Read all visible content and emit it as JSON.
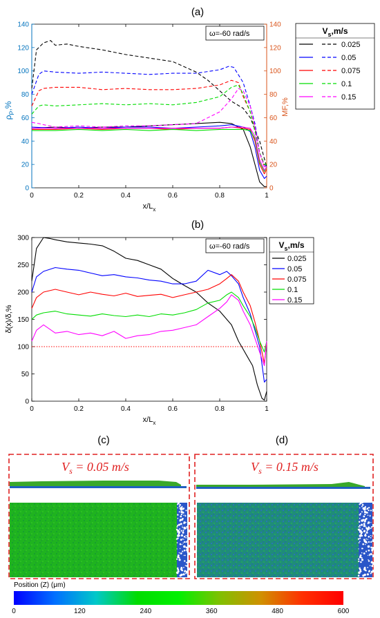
{
  "panels": {
    "a": {
      "label": "(a)"
    },
    "b": {
      "label": "(b)"
    },
    "c": {
      "label": "(c)",
      "formula_lhs": "V",
      "formula_sub": "s",
      "formula_rhs": " = 0.05 m/s"
    },
    "d": {
      "label": "(d)",
      "formula_lhs": "V",
      "formula_sub": "s",
      "formula_rhs": " = 0.15 m/s"
    }
  },
  "colorbar": {
    "title": "Position (Z) (μm)",
    "ticks": [
      "0",
      "120",
      "240",
      "360",
      "480",
      "600"
    ],
    "colors": [
      "#0000ff",
      "#0070ff",
      "#00c8c8",
      "#00dc00",
      "#00f000",
      "#80c000",
      "#d09000",
      "#ff3000",
      "#ff0000"
    ]
  },
  "colors": {
    "left_axis": "#0072bd",
    "right_axis": "#d95319",
    "series": [
      "#000000",
      "#0000ff",
      "#ff0000",
      "#00dd00",
      "#ff00ff"
    ],
    "sample_green": "#16b016",
    "sample_blue": "#1d8a6e",
    "dashed_frame": "#e02020"
  },
  "chart_data": [
    {
      "type": "line",
      "title": "(a)",
      "annotation": "ω=-60 rad/s",
      "xlabel_main": "x/L",
      "xlabel_sub": "x",
      "ylabel_main": "ρ",
      "ylabel_sub": "P",
      "ylabel_tail": ",%",
      "y2label": "MF,%",
      "xlim": [
        0,
        1
      ],
      "ylim": [
        0,
        140
      ],
      "y2lim": [
        0,
        140
      ],
      "xticks": [
        "0",
        "0.2",
        "0.4",
        "0.6",
        "0.8",
        "1"
      ],
      "yticks": [
        "0",
        "20",
        "40",
        "60",
        "80",
        "100",
        "120",
        "140"
      ],
      "y2ticks": [
        "0",
        "20",
        "40",
        "60",
        "80",
        "100",
        "120",
        "140"
      ],
      "legend": {
        "title_main": "V",
        "title_sub": "s",
        "title_tail": ",m/s",
        "labels": [
          "0.025",
          "0.05",
          "0.075",
          "0.1",
          "0.15"
        ],
        "placement": "outside-right"
      },
      "series": [
        {
          "name": "0.025",
          "style": "solid",
          "x": [
            0,
            0.1,
            0.2,
            0.3,
            0.4,
            0.5,
            0.6,
            0.7,
            0.8,
            0.85,
            0.9,
            0.93,
            0.95,
            0.97,
            0.99,
            1.0
          ],
          "y": [
            51,
            52,
            51,
            52,
            52,
            53,
            54,
            55,
            56,
            55,
            50,
            35,
            20,
            5,
            1,
            1
          ]
        },
        {
          "name": "0.05",
          "style": "solid",
          "x": [
            0,
            0.1,
            0.2,
            0.3,
            0.4,
            0.5,
            0.6,
            0.7,
            0.8,
            0.85,
            0.9,
            0.93,
            0.95,
            0.97,
            0.99,
            1.0
          ],
          "y": [
            52,
            51,
            52,
            51,
            52,
            52,
            51,
            52,
            53,
            54,
            52,
            48,
            35,
            15,
            8,
            10
          ]
        },
        {
          "name": "0.075",
          "style": "solid",
          "x": [
            0,
            0.1,
            0.2,
            0.3,
            0.4,
            0.5,
            0.6,
            0.7,
            0.8,
            0.85,
            0.9,
            0.93,
            0.95,
            0.97,
            0.99,
            1.0
          ],
          "y": [
            50,
            50,
            51,
            50,
            51,
            51,
            50,
            51,
            51,
            52,
            51,
            50,
            40,
            20,
            12,
            16
          ]
        },
        {
          "name": "0.1",
          "style": "solid",
          "x": [
            0,
            0.1,
            0.2,
            0.3,
            0.4,
            0.5,
            0.6,
            0.7,
            0.8,
            0.85,
            0.9,
            0.93,
            0.95,
            0.97,
            0.99,
            1.0
          ],
          "y": [
            49,
            49,
            50,
            49,
            50,
            49,
            50,
            49,
            50,
            50,
            50,
            49,
            42,
            22,
            14,
            18
          ]
        },
        {
          "name": "0.15",
          "style": "solid",
          "x": [
            0,
            0.1,
            0.2,
            0.3,
            0.4,
            0.5,
            0.6,
            0.7,
            0.8,
            0.85,
            0.9,
            0.93,
            0.95,
            0.97,
            0.99,
            1.0
          ],
          "y": [
            51,
            51,
            51,
            51,
            51,
            51,
            51,
            51,
            51,
            52,
            52,
            51,
            44,
            24,
            15,
            18
          ]
        },
        {
          "name": "0.025",
          "style": "dashed",
          "x": [
            0,
            0.02,
            0.05,
            0.08,
            0.1,
            0.15,
            0.2,
            0.3,
            0.4,
            0.5,
            0.6,
            0.7,
            0.75,
            0.8,
            0.85,
            0.9,
            0.93,
            0.95,
            0.97,
            0.99,
            1.0
          ],
          "y": [
            85,
            118,
            124,
            126,
            122,
            123,
            121,
            118,
            114,
            111,
            108,
            99,
            92,
            83,
            74,
            68,
            60,
            50,
            40,
            25,
            18
          ]
        },
        {
          "name": "0.05",
          "style": "dashed",
          "x": [
            0,
            0.03,
            0.05,
            0.1,
            0.2,
            0.3,
            0.4,
            0.5,
            0.6,
            0.7,
            0.8,
            0.84,
            0.86,
            0.9,
            0.93,
            0.95,
            0.97,
            0.99,
            1.0
          ],
          "y": [
            80,
            97,
            100,
            99,
            98,
            99,
            98,
            97,
            98,
            98,
            101,
            104,
            103,
            90,
            70,
            55,
            30,
            20,
            18
          ]
        },
        {
          "name": "0.075",
          "style": "dashed",
          "x": [
            0,
            0.03,
            0.05,
            0.1,
            0.2,
            0.3,
            0.4,
            0.5,
            0.6,
            0.7,
            0.8,
            0.85,
            0.88,
            0.9,
            0.93,
            0.95,
            0.97,
            0.99,
            1.0
          ],
          "y": [
            70,
            83,
            85,
            86,
            86,
            84,
            85,
            84,
            84,
            85,
            88,
            92,
            90,
            78,
            65,
            50,
            30,
            18,
            17
          ]
        },
        {
          "name": "0.1",
          "style": "dashed",
          "x": [
            0,
            0.03,
            0.05,
            0.1,
            0.2,
            0.3,
            0.4,
            0.5,
            0.6,
            0.7,
            0.8,
            0.85,
            0.88,
            0.9,
            0.93,
            0.95,
            0.97,
            0.99,
            1.0
          ],
          "y": [
            63,
            70,
            71,
            70,
            71,
            72,
            71,
            72,
            71,
            73,
            78,
            86,
            88,
            80,
            65,
            48,
            30,
            20,
            20
          ]
        },
        {
          "name": "0.15",
          "style": "dashed",
          "x": [
            0,
            0.03,
            0.05,
            0.1,
            0.2,
            0.3,
            0.4,
            0.5,
            0.6,
            0.7,
            0.8,
            0.85,
            0.88,
            0.9,
            0.93,
            0.95,
            0.97,
            0.99,
            1.0
          ],
          "y": [
            56,
            55,
            54,
            52,
            53,
            52,
            53,
            53,
            54,
            55,
            65,
            76,
            85,
            83,
            70,
            52,
            30,
            18,
            18
          ]
        }
      ]
    },
    {
      "type": "line",
      "title": "(b)",
      "annotation": "ω=-60 rad/s",
      "xlabel_main": "x/L",
      "xlabel_sub": "x",
      "ylabel": "δ(x)/δ,%",
      "xlim": [
        0,
        1
      ],
      "ylim": [
        0,
        300
      ],
      "xticks": [
        "0",
        "0.2",
        "0.4",
        "0.6",
        "0.8",
        "1"
      ],
      "yticks": [
        "0",
        "50",
        "100",
        "150",
        "200",
        "250",
        "300"
      ],
      "reference_line": {
        "y": 100,
        "color": "#ff0000",
        "style": "dotted"
      },
      "legend": {
        "title_main": "V",
        "title_sub": "s",
        "title_tail": ",m/s",
        "labels": [
          "0.025",
          "0.05",
          "0.075",
          "0.1",
          "0.15"
        ],
        "placement": "outside-right"
      },
      "series": [
        {
          "name": "0.025",
          "x": [
            0,
            0.02,
            0.05,
            0.08,
            0.1,
            0.15,
            0.2,
            0.25,
            0.3,
            0.35,
            0.4,
            0.45,
            0.5,
            0.55,
            0.6,
            0.65,
            0.7,
            0.75,
            0.8,
            0.85,
            0.88,
            0.9,
            0.92,
            0.94,
            0.96,
            0.98,
            0.99,
            1.0
          ],
          "y": [
            220,
            280,
            300,
            298,
            296,
            292,
            290,
            288,
            285,
            275,
            262,
            258,
            250,
            242,
            225,
            212,
            200,
            180,
            165,
            140,
            110,
            95,
            80,
            65,
            30,
            5,
            2,
            18
          ]
        },
        {
          "name": "0.05",
          "x": [
            0,
            0.02,
            0.05,
            0.1,
            0.15,
            0.2,
            0.25,
            0.3,
            0.35,
            0.4,
            0.45,
            0.5,
            0.55,
            0.6,
            0.65,
            0.7,
            0.75,
            0.8,
            0.83,
            0.85,
            0.88,
            0.9,
            0.93,
            0.95,
            0.97,
            0.99,
            1.0
          ],
          "y": [
            200,
            228,
            238,
            245,
            242,
            240,
            235,
            230,
            232,
            228,
            226,
            222,
            220,
            215,
            215,
            220,
            240,
            232,
            238,
            230,
            215,
            190,
            160,
            130,
            100,
            35,
            40
          ]
        },
        {
          "name": "0.075",
          "x": [
            0,
            0.02,
            0.05,
            0.1,
            0.15,
            0.2,
            0.25,
            0.3,
            0.35,
            0.4,
            0.45,
            0.5,
            0.55,
            0.6,
            0.65,
            0.7,
            0.75,
            0.8,
            0.83,
            0.85,
            0.88,
            0.9,
            0.93,
            0.95,
            0.97,
            0.99,
            1.0
          ],
          "y": [
            170,
            190,
            200,
            205,
            200,
            195,
            200,
            196,
            193,
            198,
            192,
            194,
            196,
            190,
            195,
            200,
            205,
            215,
            225,
            232,
            220,
            200,
            175,
            145,
            110,
            70,
            105
          ]
        },
        {
          "name": "0.1",
          "x": [
            0,
            0.02,
            0.05,
            0.1,
            0.15,
            0.2,
            0.25,
            0.3,
            0.35,
            0.4,
            0.45,
            0.5,
            0.55,
            0.6,
            0.65,
            0.7,
            0.75,
            0.8,
            0.83,
            0.85,
            0.88,
            0.9,
            0.93,
            0.95,
            0.97,
            0.99,
            1.0
          ],
          "y": [
            150,
            158,
            162,
            165,
            160,
            158,
            156,
            160,
            157,
            155,
            158,
            155,
            160,
            158,
            162,
            168,
            180,
            185,
            195,
            200,
            190,
            175,
            155,
            135,
            110,
            90,
            110
          ]
        },
        {
          "name": "0.15",
          "x": [
            0,
            0.02,
            0.05,
            0.1,
            0.15,
            0.2,
            0.25,
            0.3,
            0.35,
            0.4,
            0.45,
            0.5,
            0.55,
            0.6,
            0.65,
            0.7,
            0.75,
            0.8,
            0.83,
            0.85,
            0.88,
            0.9,
            0.93,
            0.95,
            0.97,
            0.99,
            1.0
          ],
          "y": [
            110,
            130,
            140,
            125,
            128,
            122,
            125,
            120,
            128,
            115,
            120,
            122,
            128,
            130,
            135,
            140,
            155,
            170,
            182,
            195,
            185,
            165,
            140,
            115,
            90,
            65,
            110
          ]
        }
      ]
    }
  ]
}
